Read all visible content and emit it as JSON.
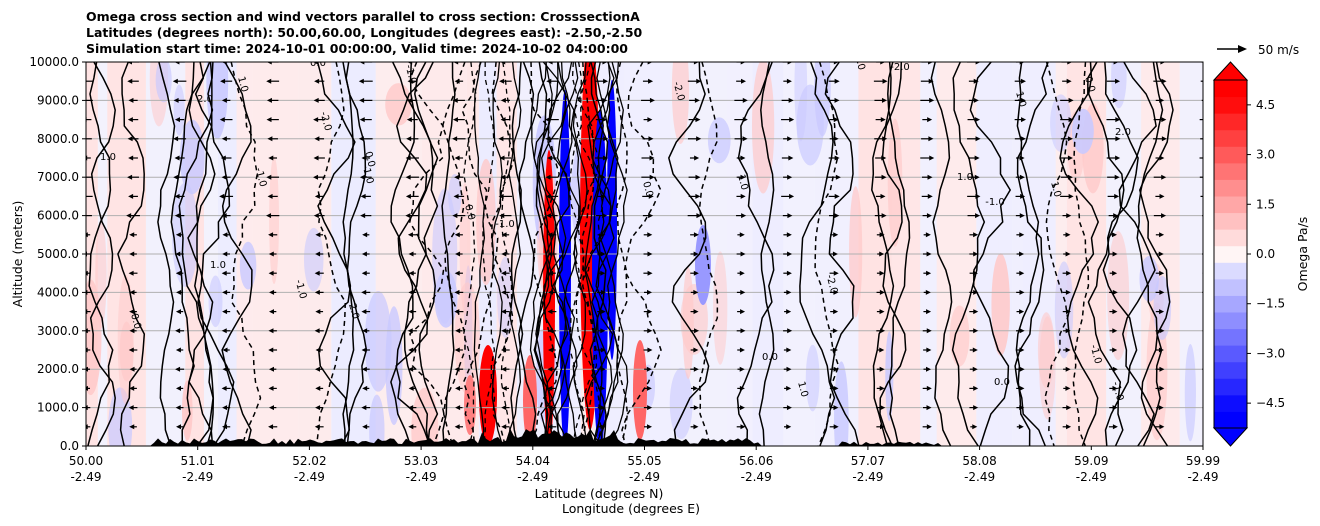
{
  "title_lines": [
    "Omega cross section and wind vectors parallel to cross section: CrosssectionA",
    "Latitudes (degrees north): 50.00,60.00, Longitudes (degrees east): -2.50,-2.50",
    "Simulation start time: 2024-10-01 00:00:00, Valid time: 2024-10-02 04:00:00"
  ],
  "quiver_key_label": "50 m/s",
  "colors": {
    "strong_red": "#ff0000",
    "strong_blue": "#0000ff",
    "pale_red": "#ffe3e3",
    "pale_blue": "#ececff",
    "grid": "#b0b0b0"
  },
  "chart_data": {
    "type": "heatmap",
    "variable": "Omega",
    "xlabel_line1": "Latitude (degrees N)",
    "xlabel_line2": "Longitude (degrees E)",
    "ylabel": "Altitude (meters)",
    "ylim": [
      0,
      10000
    ],
    "yticks": [
      "0.0",
      "1000.0",
      "2000.0",
      "3000.0",
      "4000.0",
      "5000.0",
      "6000.0",
      "7000.0",
      "8000.0",
      "9000.0",
      "10000.0"
    ],
    "x_ticks": [
      {
        "lat": "50.00",
        "lon": "-2.49"
      },
      {
        "lat": "51.01",
        "lon": "-2.49"
      },
      {
        "lat": "52.02",
        "lon": "-2.49"
      },
      {
        "lat": "53.03",
        "lon": "-2.49"
      },
      {
        "lat": "54.04",
        "lon": "-2.49"
      },
      {
        "lat": "55.05",
        "lon": "-2.49"
      },
      {
        "lat": "56.06",
        "lon": "-2.49"
      },
      {
        "lat": "57.07",
        "lon": "-2.49"
      },
      {
        "lat": "58.08",
        "lon": "-2.49"
      },
      {
        "lat": "59.09",
        "lon": "-2.49"
      },
      {
        "lat": "59.99",
        "lon": "-2.49"
      }
    ],
    "colorbar": {
      "label": "Omega Pa/s",
      "min": -5.25,
      "max": 5.25,
      "ticks": [
        "−4.5",
        "−3.0",
        "−1.5",
        "0.0",
        "1.5",
        "3.0",
        "4.5"
      ],
      "tick_values": [
        -4.5,
        -3.0,
        -1.5,
        0.0,
        1.5,
        3.0,
        4.5
      ],
      "extend": "both"
    },
    "contour_labels": [
      "0.0",
      "-1.0",
      "1.0",
      "2.0",
      "-2.0",
      "0.0",
      "1.0",
      "-1.0"
    ]
  }
}
